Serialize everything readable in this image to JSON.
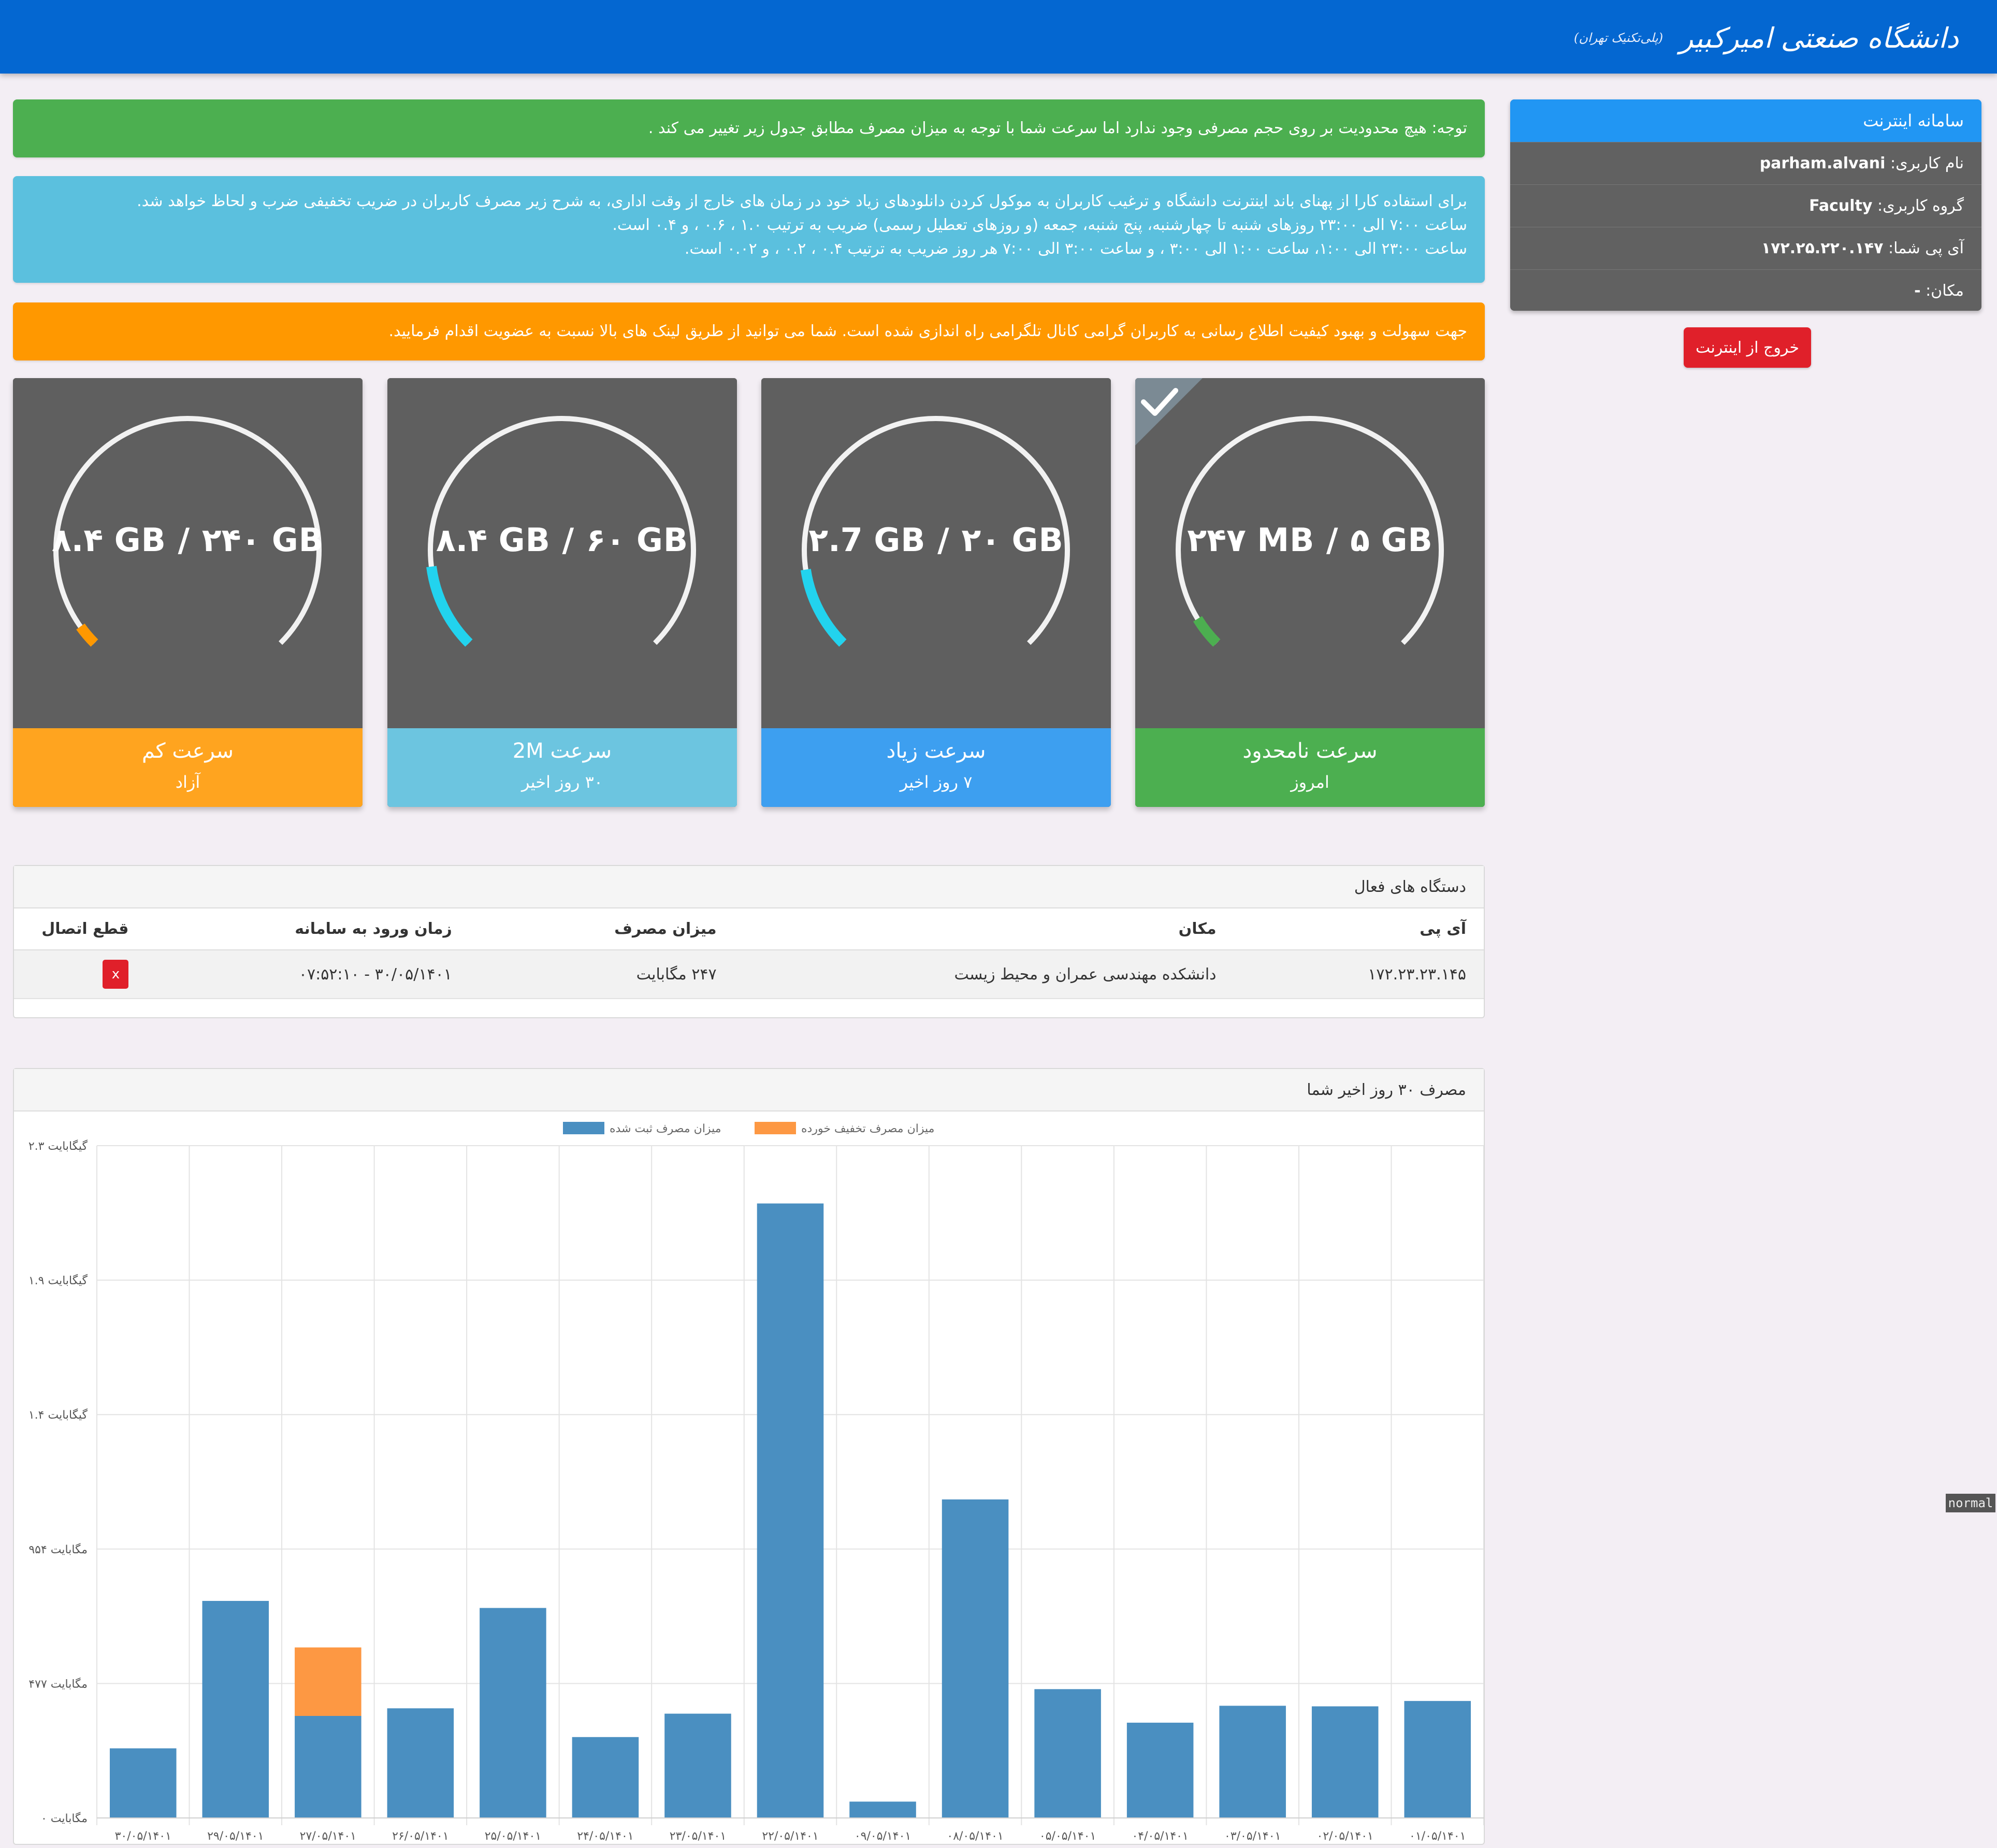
{
  "header": {
    "logo_text": "دانشگاه صنعتی امیرکبیر",
    "logo_sub": "(پلی‌تکنیک تهران)",
    "logo_icon": "university-emblem-icon"
  },
  "alerts": {
    "notice": "توجه: هیچ محدودیت بر روی حجم مصرفی وجود ندارد اما سرعت شما با توجه به میزان مصرف مطابق جدول زیر تغییر می کند .",
    "info_line1": "برای استفاده کارا از پهنای باند اینترنت دانشگاه و ترغیب کاربران به موکول کردن دانلودهای زیاد خود در زمان های خارج از وقت اداری، به شرح زیر مصرف کاربران در ضریب تخفیفی ضرب و لحاظ خواهد شد.",
    "info_line2": "ساعت ۷:۰۰ الی ۲۳:۰۰ روزهای شنبه تا چهارشنبه، پنج شنبه، جمعه (و روزهای تعطیل رسمی) ضریب به ترتیب ۱.۰ ، ۰.۶ ، و ۰.۴ است.",
    "info_line3": "ساعت ۲۳:۰۰ الی ۱:۰۰، ساعت ۱:۰۰ الی ۳:۰۰ ، و ساعت ۳:۰۰ الی ۷:۰۰ هر روز ضریب به ترتیب ۰.۴ ، ۰.۲ ، و ۰.۰۲ است.",
    "telegram": "جهت سهولت و بهبود کیفیت اطلاع رسانی به کاربران گرامی کانال تلگرامی راه اندازی شده است. شما می توانید از طریق لینک های بالا نسبت به عضویت اقدام فرمایید."
  },
  "cards": [
    {
      "label": "۲۴۷ MB / ۵ GB",
      "title": "سرعت نامحدود",
      "period": "امروز",
      "fraction": 0.05,
      "arc_color": "#4caf50",
      "footer_color": "#4caf50",
      "selected": true
    },
    {
      "label": "۲.7 GB / ۲۰ GB",
      "title": "سرعت زیاد",
      "period": "۷ روز اخیر",
      "fraction": 0.135,
      "arc_color": "#22d3ee",
      "footer_color": "#3d9ff0",
      "selected": false
    },
    {
      "label": "۸.۴ GB / ۶۰ GB",
      "title": "سرعت 2M",
      "period": "۳۰ روز اخیر",
      "fraction": 0.14,
      "arc_color": "#22d3ee",
      "footer_color": "#6cc5e0",
      "selected": false
    },
    {
      "label": "۸.۴ GB / ۲۴۰ GB",
      "title": "سرعت کم",
      "period": "آزاد",
      "fraction": 0.035,
      "arc_color": "#ff9800",
      "footer_color": "#ffa41f",
      "selected": false
    }
  ],
  "panel": {
    "title": "سامانه اینترنت",
    "username_label": "نام کاربری:",
    "username": "parham.alvani",
    "group_label": "گروه کاربری:",
    "group": "Faculty",
    "ip_label": "آی پی شما:",
    "ip": "۱۷۲.۲۵.۲۲۰.۱۴۷",
    "location_label": "مکان:",
    "location": "-",
    "logout": "خروج از اینترنت"
  },
  "devices": {
    "title": "دستگاه های فعال",
    "headers": [
      "آی پی",
      "مکان",
      "میزان مصرف",
      "زمان ورود به سامانه",
      "قطع اتصال"
    ],
    "rows": [
      {
        "ip": "۱۷۲.۲۳.۲۳.۱۴۵",
        "location": "دانشکده مهندسی عمران و محیط زیست",
        "usage": "۲۴۷ مگابایت",
        "login_time": "۳۰/۰۵/۱۴۰۱ - ۰۷:۵۲:۱۰",
        "disconnect": "x"
      }
    ]
  },
  "chart_title": "مصرف ۳۰ روز اخیر شما",
  "chart_data": {
    "type": "bar",
    "stacked": true,
    "legend_position": "top",
    "grid": true,
    "categories": [
      "۳۰/۰۵/۱۴۰۱",
      "۲۹/۰۵/۱۴۰۱",
      "۲۷/۰۵/۱۴۰۱",
      "۲۶/۰۵/۱۴۰۱",
      "۲۵/۰۵/۱۴۰۱",
      "۲۴/۰۵/۱۴۰۱",
      "۲۳/۰۵/۱۴۰۱",
      "۲۲/۰۵/۱۴۰۱",
      "۰۹/۰۵/۱۴۰۱",
      "۰۸/۰۵/۱۴۰۱",
      "۰۵/۰۵/۱۴۰۱",
      "۰۴/۰۵/۱۴۰۱",
      "۰۳/۰۵/۱۴۰۱",
      "۰۲/۰۵/۱۴۰۱",
      "۰۱/۰۵/۱۴۰۱"
    ],
    "series": [
      {
        "name": "میزان مصرف ثبت شده",
        "color": "#4a8fc1",
        "values": [
          247,
          770,
          362,
          389,
          745,
          287,
          370,
          2180,
          58,
          1130,
          457,
          338,
          398,
          396,
          415
        ]
      },
      {
        "name": "میزان مصرف تخفیف خورده",
        "color": "#fd9843",
        "values": [
          0,
          0,
          243,
          0,
          0,
          0,
          0,
          0,
          0,
          0,
          0,
          0,
          0,
          0,
          0
        ]
      }
    ],
    "y_unit": "MB",
    "ylim": [
      0,
      2385
    ],
    "y_ticks": [
      {
        "value": 0,
        "label": "۰ مگابایت"
      },
      {
        "value": 477,
        "label": "۴۷۷ مگابایت"
      },
      {
        "value": 954,
        "label": "۹۵۴ مگابایت"
      },
      {
        "value": 1431,
        "label": "۱.۴ گیگابایت"
      },
      {
        "value": 1908,
        "label": "۱.۹ گیگابایت"
      },
      {
        "value": 2385,
        "label": "۲.۳ گیگابایت"
      }
    ]
  },
  "side_badge": "normal"
}
